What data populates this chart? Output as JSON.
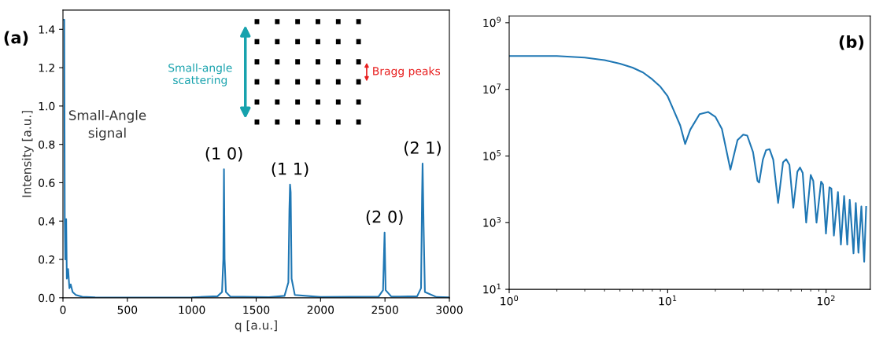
{
  "chart_data": [
    {
      "type": "line",
      "xlabel": "q [a.u.]",
      "ylabel": "Intensity [a.u.]",
      "xlim": [
        0,
        3000
      ],
      "xticks": [
        0,
        500,
        1000,
        1500,
        2000,
        2500,
        3000
      ],
      "ylim": [
        0,
        1.5
      ],
      "yticks": [
        {
          "value": 0,
          "label": "0.0"
        },
        0.2,
        0.4,
        0.6,
        0.8,
        {
          "value": 1,
          "label": "1.0"
        },
        1.2,
        1.4
      ],
      "grid": false,
      "x": [
        2,
        10,
        14,
        18,
        25,
        30,
        40,
        50,
        60,
        75,
        100,
        150,
        250,
        500,
        1000,
        1200,
        1235,
        1245,
        1250,
        1255,
        1265,
        1300,
        1600,
        1720,
        1750,
        1758,
        1763,
        1768,
        1775,
        1800,
        2000,
        2450,
        2485,
        2497,
        2505,
        2550,
        2750,
        2780,
        2788,
        2792,
        2800,
        2810,
        2900,
        3000
      ],
      "series": [
        {
          "color": "#1f77b4",
          "values": [
            1.45,
            1.45,
            0.41,
            0.2,
            0.41,
            0.1,
            0.15,
            0.05,
            0.07,
            0.03,
            0.015,
            0.005,
            0.002,
            0.001,
            0.002,
            0.008,
            0.03,
            0.2,
            0.67,
            0.2,
            0.03,
            0.006,
            0.003,
            0.01,
            0.08,
            0.46,
            0.59,
            0.55,
            0.1,
            0.015,
            0.004,
            0.006,
            0.04,
            0.34,
            0.04,
            0.006,
            0.008,
            0.05,
            0.53,
            0.7,
            0.37,
            0.03,
            0.004,
            0.002
          ]
        }
      ],
      "annotations": [
        "(a)",
        "Small-Angle signal",
        "Small-angle scattering",
        "Bragg peaks",
        {
          "text": "(1 0)",
          "x": 1250,
          "y": 0.67
        },
        {
          "text": "(1 1)",
          "x": 1763,
          "y": 0.59
        },
        {
          "text": "(2 0)",
          "x": 2497,
          "y": 0.34
        },
        {
          "text": "(2 1)",
          "x": 2792,
          "y": 0.7
        }
      ]
    },
    {
      "type": "line",
      "log": "xy",
      "xlim": [
        1,
        190
      ],
      "xticks": [
        {
          "value": 1,
          "label": "10$^{0}$"
        },
        {
          "value": 10,
          "label": "10$^{1}$"
        },
        {
          "value": 100,
          "label": "10$^{2}$"
        }
      ],
      "ylim": [
        10,
        1600000000
      ],
      "yticks": [
        {
          "value": 10,
          "label": "10$^{1}$"
        },
        {
          "value": 1000,
          "label": "10$^{3}$"
        },
        {
          "value": 100000,
          "label": "10$^{5}$"
        },
        {
          "value": 10000000,
          "label": "10$^{7}$"
        },
        {
          "value": 1000000000,
          "label": "10$^{9}$"
        }
      ],
      "grid": false,
      "x": [
        1,
        2,
        3,
        4,
        5,
        6,
        7,
        8,
        9,
        10,
        10.9,
        12,
        12.9,
        13.9,
        15.9,
        18,
        20,
        22,
        24.9,
        27.6,
        30,
        31.8,
        34.6,
        36.9,
        37.8,
        39.9,
        41.8,
        44,
        46.4,
        49.8,
        53.5,
        56,
        58.7,
        62.1,
        65.9,
        68.5,
        71.2,
        74.9,
        80,
        83,
        87,
        93,
        95.6,
        99.8,
        105,
        108,
        112,
        118.8,
        124,
        130,
        136,
        141,
        149,
        154,
        160,
        167,
        174,
        179
      ],
      "series": [
        {
          "color": "#1f77b4",
          "values": [
            100000000,
            100000000,
            90000000,
            75000000,
            59000000,
            45000000,
            32000000,
            20000000,
            12000000,
            6200000,
            2400000,
            830000,
            230000,
            620000,
            1800000,
            2100000,
            1500000,
            650000,
            39000,
            300000,
            440000,
            410000,
            130000,
            18000,
            16000,
            78000,
            150000,
            160000,
            78000,
            3900,
            65000,
            80000,
            54000,
            2800,
            34000,
            45000,
            31000,
            1000,
            27000,
            18000,
            1000,
            17000,
            14000,
            470,
            11500,
            10500,
            410,
            8300,
            220,
            6300,
            220,
            4900,
            120,
            3900,
            125,
            3100,
            67,
            3000
          ]
        }
      ],
      "annotations": [
        "(b)"
      ]
    }
  ]
}
